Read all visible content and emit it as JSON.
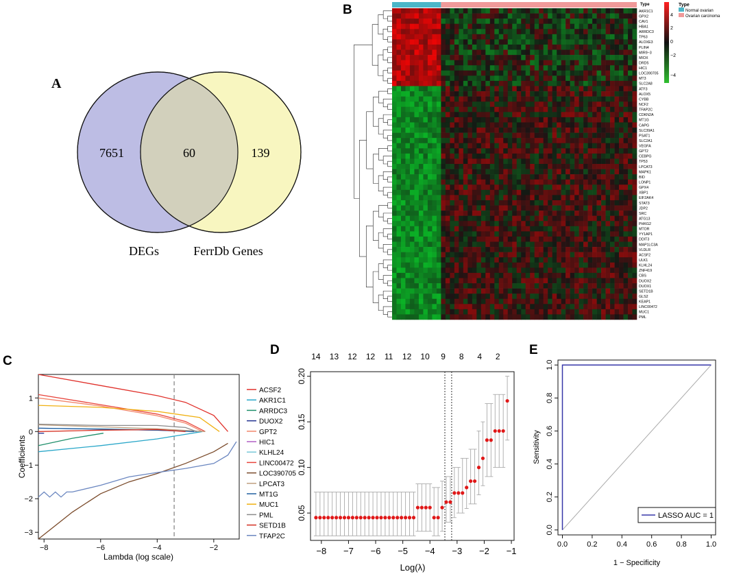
{
  "panels": {
    "A": "A",
    "B": "B",
    "C": "C",
    "D": "D",
    "E": "E"
  },
  "venn": {
    "left_label": "DEGs",
    "right_label": "FerrDb Genes",
    "left_only": "7651",
    "overlap": "60",
    "right_only": "139",
    "left_color": "#b2b2df",
    "right_color": "#f7f5b5",
    "overlap_color": "#d2d0bc"
  },
  "heatmap": {
    "legend_title": "Type",
    "type_label": "Type",
    "groups": [
      {
        "name": "Normal ovarian",
        "color": "#4bb6c8"
      },
      {
        "name": "Ovarian carcinoma",
        "color": "#f09a9a"
      }
    ],
    "scale_ticks": [
      "4",
      "2",
      "0",
      "−2",
      "−4"
    ],
    "genes": [
      "AKR1C1",
      "GPX2",
      "CAV1",
      "HBA1",
      "ARRDC3",
      "TP63",
      "ALOXE3",
      "PLIN4",
      "MIR9−3",
      "MIOX",
      "DRD5",
      "HIC1",
      "LOC390705",
      "MT3",
      "SLC2A8",
      "ATF3",
      "ALOX5",
      "CYBB",
      "NCF2",
      "TFAP2C",
      "CDKN2A",
      "MT1G",
      "CAPG",
      "SLC39A1",
      "PSAT1",
      "SLC2A1",
      "VEGFA",
      "GPT2",
      "CEBPG",
      "TP53",
      "LPCAT3",
      "MAPK1",
      "BID",
      "LONP1",
      "GPX4",
      "XBP1",
      "EIF2AK4",
      "STAT3",
      "JDP2",
      "SRC",
      "ATG13",
      "PHKG2",
      "MTOR",
      "YY1AP1",
      "DDIT3",
      "MAP1LC3A",
      "VLDLR",
      "ACSF2",
      "ULK1",
      "KLHL24",
      "ZNF419",
      "CBS",
      "DUOX2",
      "DUOX1",
      "SETD1B",
      "GLS2",
      "KEAP1",
      "LINC00472",
      "MUC1",
      "PML"
    ]
  },
  "chart_data": [
    {
      "type": "line",
      "panel": "C",
      "title": "",
      "xlabel": "Lambda (log scale)",
      "ylabel": "Coefficients",
      "xlim": [
        -8.2,
        -1.1
      ],
      "ylim": [
        -3.2,
        1.7
      ],
      "xticks": [
        "-8",
        "-6",
        "-4",
        "-2"
      ],
      "yticks": [
        "-3",
        "-2",
        "-1",
        "0",
        "1"
      ],
      "vline": -3.4,
      "series": [
        {
          "name": "ACSF2",
          "color": "#e0302a",
          "x": [
            -8.2,
            -6,
            -4,
            -3,
            -2,
            -1.5
          ],
          "y": [
            1.7,
            1.37,
            1.07,
            0.87,
            0.48,
            0
          ]
        },
        {
          "name": "AKR1C1",
          "color": "#2aa7c9",
          "x": [
            -8.2,
            -6,
            -4,
            -2.4
          ],
          "y": [
            -0.6,
            -0.42,
            -0.22,
            0
          ]
        },
        {
          "name": "ARRDC3",
          "color": "#1f8f6b",
          "x": [
            -8.2,
            -7,
            -5.9
          ],
          "y": [
            -0.42,
            -0.2,
            -0.05
          ]
        },
        {
          "name": "DUOX2",
          "color": "#1f2f8f",
          "x": [
            -8.2,
            -8
          ],
          "y": [
            -0.05,
            -0.05
          ]
        },
        {
          "name": "GPT2",
          "color": "#f2856a",
          "x": [
            -8.2,
            -6,
            -4,
            -3,
            -2.4
          ],
          "y": [
            1.0,
            0.76,
            0.47,
            0.25,
            0
          ]
        },
        {
          "name": "HIC1",
          "color": "#b05ec4",
          "x": [
            -8.2,
            -6,
            -4,
            -2.6
          ],
          "y": [
            0.1,
            0.07,
            0.04,
            0
          ]
        },
        {
          "name": "KLHL24",
          "color": "#78c8d8",
          "x": [
            -8.2,
            -6,
            -4,
            -2.5
          ],
          "y": [
            0.1,
            0.08,
            0.05,
            0
          ]
        },
        {
          "name": "LINC00472",
          "color": "#e8433a",
          "x": [
            -8.2,
            -6,
            -4,
            -3,
            -2.3
          ],
          "y": [
            1.1,
            0.8,
            0.52,
            0.3,
            0
          ]
        },
        {
          "name": "LOC390705",
          "color": "#7a4a2a",
          "x": [
            -8.2,
            -7,
            -6,
            -5,
            -4,
            -3,
            -2,
            -1.5
          ],
          "y": [
            -3.2,
            -2.4,
            -1.85,
            -1.5,
            -1.25,
            -0.95,
            -0.6,
            -0.35
          ]
        },
        {
          "name": "LPCAT3",
          "color": "#c0a080",
          "x": [
            -8.2,
            -6,
            -4,
            -2.3
          ],
          "y": [
            0.2,
            0.14,
            0.08,
            0
          ]
        },
        {
          "name": "MT1G",
          "color": "#1f5fa0",
          "x": [
            -8.2,
            -6,
            -4,
            -2.7
          ],
          "y": [
            0.1,
            0.07,
            0.04,
            0
          ]
        },
        {
          "name": "MUC1",
          "color": "#f0b010",
          "x": [
            -8.2,
            -6,
            -4,
            -2.5,
            -1.8
          ],
          "y": [
            0.78,
            0.72,
            0.6,
            0.42,
            0
          ]
        },
        {
          "name": "PML",
          "color": "#8a8a8a",
          "x": [
            -8.2,
            -6,
            -4,
            -3,
            -2.6
          ],
          "y": [
            0.22,
            0.18,
            0.18,
            0.12,
            0
          ]
        },
        {
          "name": "SETD1B",
          "color": "#d42e20",
          "x": [
            -8.2,
            -6,
            -4,
            -3
          ],
          "y": [
            0.0,
            0.04,
            0.06,
            0
          ]
        },
        {
          "name": "TFAP2C",
          "color": "#6a86c0",
          "x": [
            -8.2,
            -8,
            -7.8,
            -7.6,
            -7.4,
            -7.2,
            -7,
            -6,
            -5,
            -4,
            -3,
            -2,
            -1.5,
            -1.2
          ],
          "y": [
            -1.95,
            -1.8,
            -1.95,
            -1.8,
            -1.95,
            -1.8,
            -1.8,
            -1.6,
            -1.35,
            -1.22,
            -1.1,
            -0.95,
            -0.7,
            -0.3
          ]
        }
      ]
    },
    {
      "type": "scatter",
      "panel": "D",
      "title": "",
      "xlabel": "Log(λ)",
      "ylabel": "",
      "xlim": [
        -8.4,
        -0.9
      ],
      "ylim": [
        0.02,
        0.205
      ],
      "xticks": [
        "-8",
        "-7",
        "-6",
        "-5",
        "-4",
        "-3",
        "-2",
        "-1"
      ],
      "yticks": [
        "0.05",
        "0.10",
        "0.15",
        "0.20"
      ],
      "top_ticks": [
        "14",
        "13",
        "12",
        "12",
        "11",
        "12",
        "10",
        "9",
        "8",
        "4",
        "2"
      ],
      "vlines": [
        -3.45,
        -3.2
      ],
      "points_x": [
        -8.2,
        -8.05,
        -7.9,
        -7.75,
        -7.6,
        -7.45,
        -7.3,
        -7.15,
        -7.0,
        -6.85,
        -6.7,
        -6.55,
        -6.4,
        -6.25,
        -6.1,
        -5.95,
        -5.8,
        -5.65,
        -5.5,
        -5.35,
        -5.2,
        -5.05,
        -4.9,
        -4.75,
        -4.6,
        -4.45,
        -4.3,
        -4.15,
        -4.0,
        -3.85,
        -3.7,
        -3.55,
        -3.4,
        -3.25,
        -3.1,
        -2.95,
        -2.8,
        -2.65,
        -2.5,
        -2.35,
        -2.2,
        -2.05,
        -1.9,
        -1.75,
        -1.6,
        -1.45,
        -1.3,
        -1.15
      ],
      "points_y": [
        0.045,
        0.045,
        0.045,
        0.045,
        0.045,
        0.045,
        0.045,
        0.045,
        0.045,
        0.045,
        0.045,
        0.045,
        0.045,
        0.045,
        0.045,
        0.045,
        0.045,
        0.045,
        0.045,
        0.045,
        0.045,
        0.045,
        0.045,
        0.045,
        0.045,
        0.056,
        0.056,
        0.056,
        0.056,
        0.045,
        0.045,
        0.056,
        0.062,
        0.062,
        0.072,
        0.072,
        0.072,
        0.078,
        0.085,
        0.085,
        0.1,
        0.11,
        0.13,
        0.13,
        0.14,
        0.14,
        0.14,
        0.173
      ],
      "err_low": [
        0.025,
        0.025,
        0.025,
        0.025,
        0.025,
        0.025,
        0.025,
        0.025,
        0.025,
        0.025,
        0.025,
        0.025,
        0.025,
        0.025,
        0.025,
        0.025,
        0.025,
        0.025,
        0.025,
        0.025,
        0.025,
        0.025,
        0.025,
        0.025,
        0.025,
        0.03,
        0.03,
        0.03,
        0.03,
        0.025,
        0.025,
        0.03,
        0.04,
        0.04,
        0.045,
        0.05,
        0.05,
        0.055,
        0.06,
        0.06,
        0.07,
        0.08,
        0.09,
        0.09,
        0.1,
        0.1,
        0.1,
        0.13
      ],
      "err_high": [
        0.073,
        0.073,
        0.073,
        0.073,
        0.073,
        0.073,
        0.073,
        0.073,
        0.073,
        0.073,
        0.073,
        0.073,
        0.073,
        0.073,
        0.073,
        0.073,
        0.073,
        0.073,
        0.073,
        0.073,
        0.073,
        0.073,
        0.073,
        0.073,
        0.073,
        0.082,
        0.082,
        0.082,
        0.082,
        0.078,
        0.078,
        0.085,
        0.09,
        0.09,
        0.1,
        0.1,
        0.11,
        0.11,
        0.12,
        0.12,
        0.14,
        0.15,
        0.17,
        0.17,
        0.18,
        0.18,
        0.18,
        0.2
      ]
    },
    {
      "type": "line",
      "panel": "E",
      "title": "",
      "xlabel": "1 − Specificity",
      "ylabel": "Sensitivity",
      "xlim": [
        -0.03,
        1.03
      ],
      "ylim": [
        -0.03,
        1.03
      ],
      "xticks": [
        "0.0",
        "0.2",
        "0.4",
        "0.6",
        "0.8",
        "1.0"
      ],
      "yticks": [
        "0.0",
        "0.2",
        "0.4",
        "0.6",
        "0.8",
        "1.0"
      ],
      "series": [
        {
          "name": "LASSO AUC = 1",
          "color": "#3636a8",
          "x": [
            0,
            0,
            1
          ],
          "y": [
            0,
            1,
            1
          ]
        },
        {
          "name": "reference",
          "color": "#aaaaaa",
          "x": [
            0,
            1
          ],
          "y": [
            0,
            1
          ]
        }
      ],
      "legend": "LASSO AUC = 1"
    }
  ]
}
